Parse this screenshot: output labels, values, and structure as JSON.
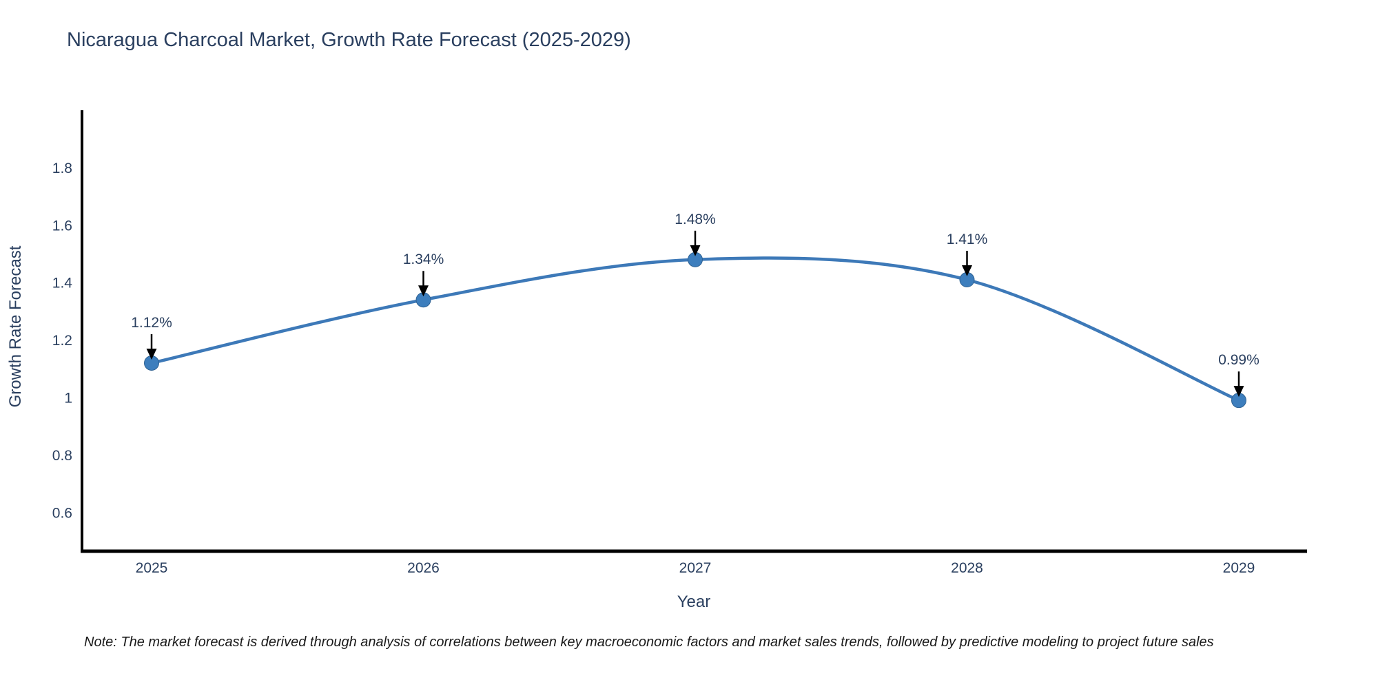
{
  "figure": {
    "title": "Nicaragua Charcoal Market, Growth Rate Forecast (2025-2029)",
    "note": "Note: The market forecast is derived through analysis of correlations between key macroeconomic factors and market sales trends, followed by predictive modeling to project future sales"
  },
  "colors": {
    "background": "#ffffff",
    "line": "#3d79b8",
    "marker_fill": "#3d7ebd",
    "marker_edge": "#2f6293",
    "title_text": "#2a3f5f",
    "tick_text": "#2a3f5f",
    "axis_line": "#000000",
    "arrow": "#000000",
    "note_text": "#1a1a1a"
  },
  "chart_data": {
    "type": "line",
    "title": "Nicaragua Charcoal Market, Growth Rate Forecast (2025-2029)",
    "xlabel": "Year",
    "ylabel": "Growth Rate Forecast",
    "categories": [
      "2025",
      "2026",
      "2027",
      "2028",
      "2029"
    ],
    "series": [
      {
        "name": "Growth Rate Forecast",
        "values": [
          1.12,
          1.34,
          1.48,
          1.41,
          0.99
        ],
        "point_labels": [
          "1.12%",
          "1.34%",
          "1.48%",
          "1.41%",
          "0.99%"
        ]
      }
    ],
    "ytick_labels": [
      "1.8",
      "1.6",
      "1.4",
      "1.2",
      "1",
      "0.8",
      "0.6"
    ],
    "ytick_values": [
      1.8,
      1.6,
      1.4,
      1.2,
      1.0,
      0.8,
      0.6
    ],
    "ylim": [
      0.47,
      2.0
    ],
    "grid": false,
    "legend_position": "none",
    "line_shape": "spline",
    "annotation_style": "label-above-with-down-arrow"
  }
}
